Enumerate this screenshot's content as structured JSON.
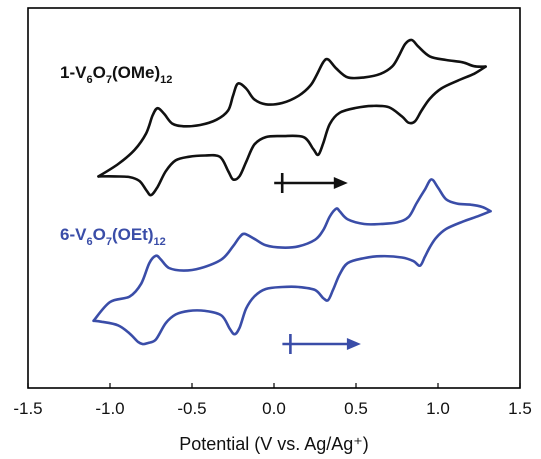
{
  "chart_data": {
    "type": "line",
    "xlabel": "Potential (V vs. Ag/Ag⁺)",
    "ylabel": "",
    "xlim": [
      -1.5,
      1.5
    ],
    "x_ticks": [
      -1.5,
      -1.0,
      -0.5,
      0.0,
      0.5,
      1.0,
      1.5
    ],
    "x_tick_labels": [
      "-1.5",
      "-1.0",
      "-0.5",
      "0.0",
      "0.5",
      "1.0",
      "1.5"
    ],
    "ylim": [
      0,
      1
    ],
    "grid": false,
    "series": [
      {
        "name": "1-V6O7(OMe)12",
        "label_parts": {
          "a": "1-V",
          "b": "6",
          "c": "O",
          "d": "7",
          "e": "(OMe)",
          "f": "12"
        },
        "color": "#111111",
        "scan_direction_arrow": {
          "x_start": 0.05,
          "x_end": 0.45
        },
        "forward": {
          "x": [
            -1.07,
            -0.95,
            -0.85,
            -0.78,
            -0.74,
            -0.71,
            -0.67,
            -0.62,
            -0.55,
            -0.45,
            -0.35,
            -0.28,
            -0.25,
            -0.22,
            -0.17,
            -0.12,
            -0.05,
            0.05,
            0.15,
            0.22,
            0.26,
            0.3,
            0.33,
            0.38,
            0.45,
            0.55,
            0.65,
            0.72,
            0.76,
            0.8,
            0.84,
            0.88,
            0.95,
            1.05,
            1.15,
            1.22,
            1.29
          ],
          "y": [
            0.584,
            0.622,
            0.665,
            0.715,
            0.77,
            0.792,
            0.775,
            0.745,
            0.737,
            0.741,
            0.757,
            0.785,
            0.83,
            0.867,
            0.852,
            0.819,
            0.804,
            0.808,
            0.83,
            0.86,
            0.893,
            0.932,
            0.941,
            0.913,
            0.886,
            0.886,
            0.897,
            0.919,
            0.95,
            0.988,
            1.0,
            0.98,
            0.95,
            0.939,
            0.932,
            0.92,
            0.919
          ]
        },
        "reverse": {
          "x": [
            1.29,
            1.22,
            1.12,
            1.02,
            0.95,
            0.9,
            0.86,
            0.82,
            0.78,
            0.7,
            0.6,
            0.5,
            0.4,
            0.34,
            0.3,
            0.27,
            0.24,
            0.18,
            0.05,
            -0.05,
            -0.12,
            -0.17,
            -0.21,
            -0.25,
            -0.28,
            -0.33,
            -0.42,
            -0.52,
            -0.6,
            -0.66,
            -0.71,
            -0.75,
            -0.78,
            -0.82,
            -0.88,
            -0.97,
            -1.07
          ],
          "y": [
            0.919,
            0.897,
            0.876,
            0.852,
            0.821,
            0.785,
            0.752,
            0.748,
            0.767,
            0.795,
            0.799,
            0.793,
            0.778,
            0.744,
            0.685,
            0.65,
            0.667,
            0.704,
            0.707,
            0.704,
            0.681,
            0.628,
            0.585,
            0.575,
            0.601,
            0.644,
            0.648,
            0.644,
            0.633,
            0.6,
            0.552,
            0.527,
            0.543,
            0.57,
            0.582,
            0.584,
            0.584
          ]
        }
      },
      {
        "name": "6-V6O7(OEt)12",
        "label_parts": {
          "a": "6-V",
          "b": "6",
          "c": "O",
          "d": "7",
          "e": "(OEt)",
          "f": "12"
        },
        "color": "#3a4da8",
        "scan_direction_arrow": {
          "x_start": 0.1,
          "x_end": 0.53
        },
        "forward": {
          "x": [
            -1.1,
            -1.0,
            -0.88,
            -0.81,
            -0.76,
            -0.72,
            -0.69,
            -0.64,
            -0.55,
            -0.45,
            -0.32,
            -0.25,
            -0.21,
            -0.18,
            -0.12,
            -0.05,
            0.05,
            0.15,
            0.25,
            0.3,
            0.34,
            0.38,
            0.4,
            0.45,
            0.55,
            0.65,
            0.75,
            0.82,
            0.87,
            0.92,
            0.96,
            1.0,
            1.05,
            1.12,
            1.2,
            1.27,
            1.32
          ],
          "y": [
            0.144,
            0.201,
            0.218,
            0.257,
            0.32,
            0.342,
            0.331,
            0.305,
            0.297,
            0.304,
            0.331,
            0.371,
            0.399,
            0.409,
            0.394,
            0.374,
            0.367,
            0.371,
            0.391,
            0.42,
            0.462,
            0.486,
            0.478,
            0.453,
            0.439,
            0.439,
            0.444,
            0.46,
            0.503,
            0.544,
            0.575,
            0.55,
            0.514,
            0.501,
            0.498,
            0.491,
            0.478
          ]
        },
        "reverse": {
          "x": [
            1.32,
            1.25,
            1.15,
            1.05,
            0.99,
            0.95,
            0.92,
            0.89,
            0.85,
            0.78,
            0.65,
            0.55,
            0.45,
            0.4,
            0.36,
            0.33,
            0.3,
            0.25,
            0.15,
            0.05,
            -0.05,
            -0.12,
            -0.17,
            -0.21,
            -0.24,
            -0.27,
            -0.32,
            -0.42,
            -0.52,
            -0.6,
            -0.66,
            -0.72,
            -0.77,
            -0.8,
            -0.83,
            -0.88,
            -0.95,
            -1.05,
            -1.1
          ],
          "y": [
            0.478,
            0.464,
            0.446,
            0.424,
            0.398,
            0.368,
            0.339,
            0.312,
            0.326,
            0.337,
            0.341,
            0.335,
            0.32,
            0.285,
            0.238,
            0.207,
            0.213,
            0.238,
            0.247,
            0.247,
            0.241,
            0.218,
            0.181,
            0.123,
            0.103,
            0.12,
            0.16,
            0.174,
            0.174,
            0.163,
            0.137,
            0.087,
            0.076,
            0.073,
            0.08,
            0.105,
            0.13,
            0.141,
            0.144
          ]
        }
      }
    ]
  }
}
